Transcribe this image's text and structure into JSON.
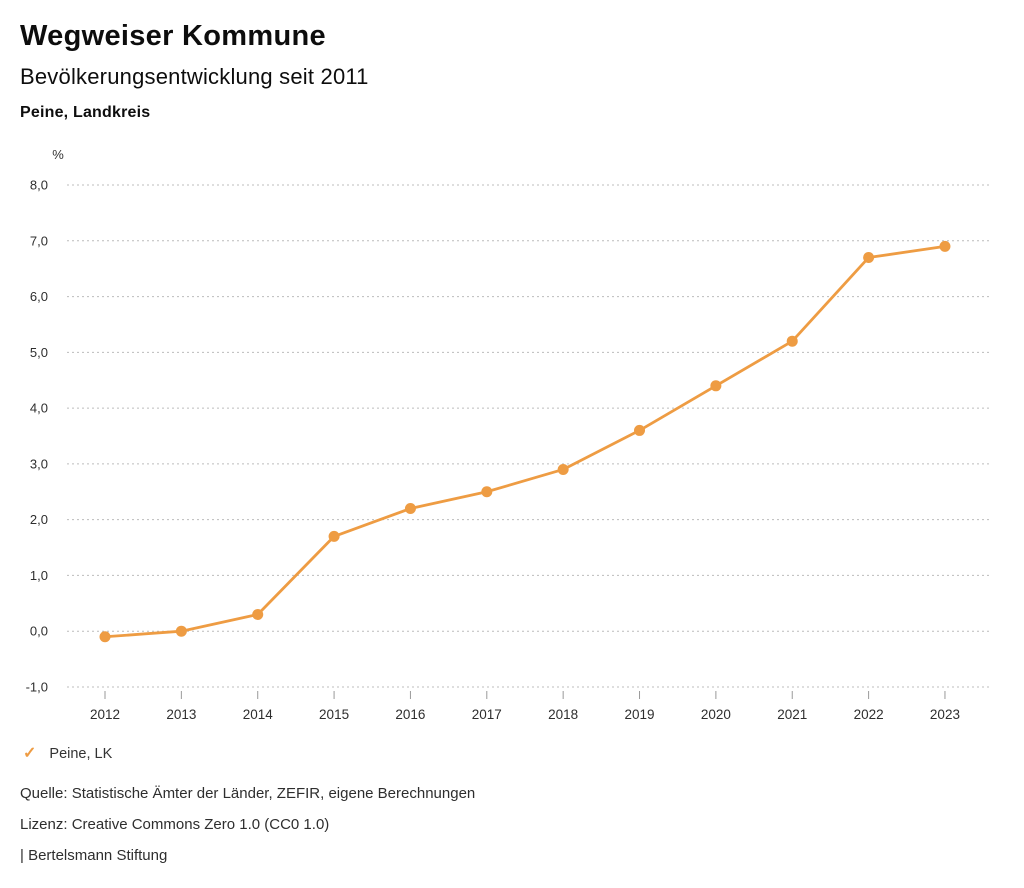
{
  "header": {
    "title": "Wegweiser Kommune",
    "subtitle": "Bevölkerungsentwicklung seit 2011",
    "region": "Peine, Landkreis"
  },
  "chart_data": {
    "type": "line",
    "title": "Bevölkerungsentwicklung seit 2011",
    "region": "Peine, Landkreis",
    "unit_label": "%",
    "x": [
      2012,
      2013,
      2014,
      2015,
      2016,
      2017,
      2018,
      2019,
      2020,
      2021,
      2022,
      2023
    ],
    "series": [
      {
        "name": "Peine, LK",
        "values": [
          -0.1,
          0.0,
          0.3,
          1.7,
          2.2,
          2.5,
          2.9,
          3.6,
          4.4,
          5.2,
          6.7,
          6.9
        ],
        "color": "#EE9C43",
        "marker": "circle"
      }
    ],
    "ylim": [
      -1.0,
      8.0
    ],
    "yticks": [
      -1.0,
      0.0,
      1.0,
      2.0,
      3.0,
      4.0,
      5.0,
      6.0,
      7.0,
      8.0
    ],
    "ytick_labels": [
      "-1,0",
      "0,0",
      "1,0",
      "2,0",
      "3,0",
      "4,0",
      "5,0",
      "6,0",
      "7,0",
      "8,0"
    ],
    "grid": "horizontal-dotted",
    "grid_color": "#bcbcbc",
    "tick_color": "#9a9a9a",
    "axis_text_color": "#2e2e2e",
    "legend_position": "bottom-left"
  },
  "legend": {
    "items": [
      {
        "label": "Peine, LK",
        "icon": "check-icon",
        "color": "#EE9C43",
        "active": true
      }
    ]
  },
  "footer": {
    "source": "Quelle: Statistische Ämter der Länder, ZEFIR, eigene Berechnungen",
    "license": "Lizenz: Creative Commons Zero 1.0 (CC0 1.0)",
    "brand": "| Bertelsmann Stiftung"
  }
}
